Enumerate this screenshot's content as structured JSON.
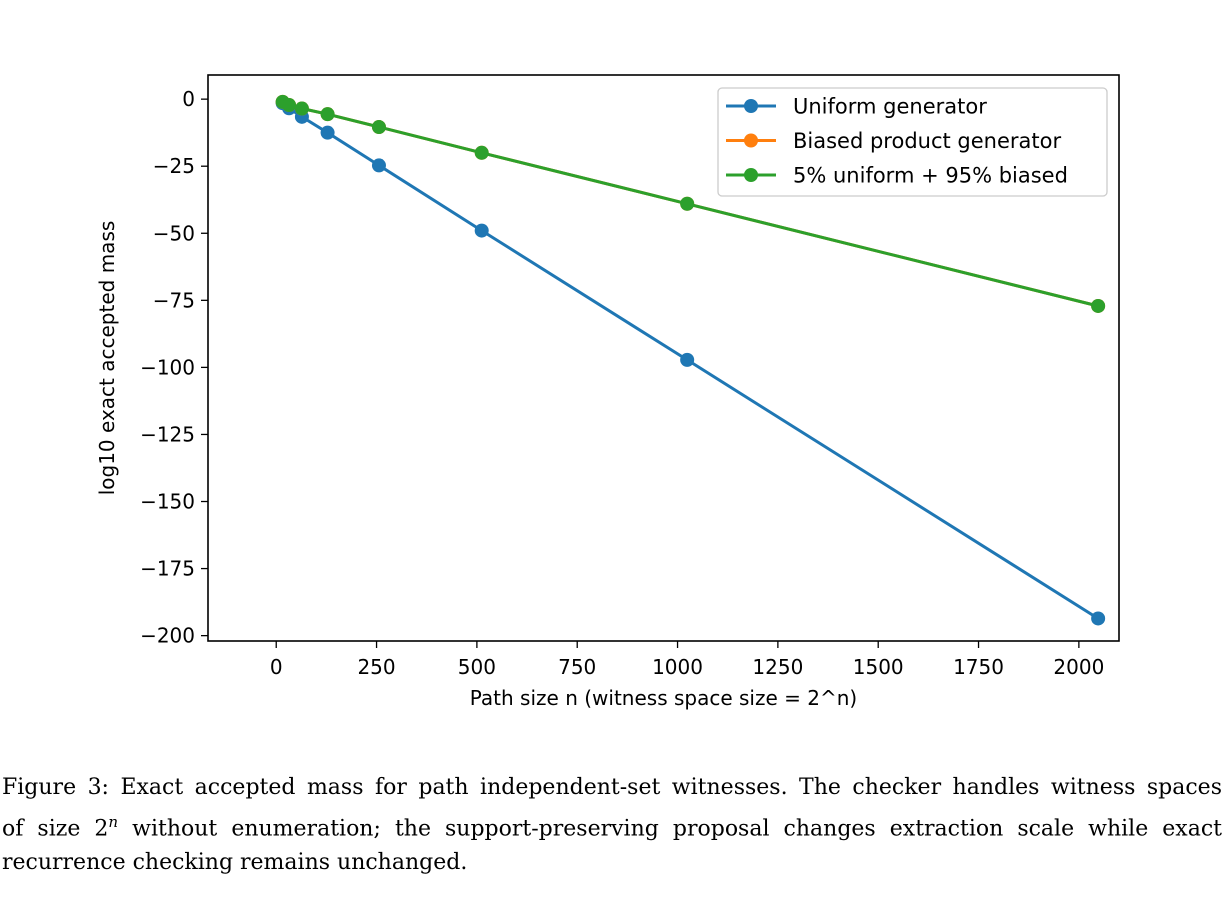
{
  "chart_data": {
    "type": "line",
    "title": "",
    "xlabel": "Path size n (witness space size = 2^n)",
    "ylabel": "log10 exact accepted mass",
    "xlim": [
      -170,
      2100
    ],
    "ylim": [
      -202,
      9
    ],
    "xticks": [
      0,
      250,
      500,
      750,
      1000,
      1250,
      1500,
      1750,
      2000
    ],
    "xtick_labels": [
      "0",
      "250",
      "500",
      "750",
      "1000",
      "1250",
      "1500",
      "1750",
      "2000"
    ],
    "yticks": [
      0,
      -25,
      -50,
      -75,
      -100,
      -125,
      -150,
      -175,
      -200
    ],
    "ytick_labels": [
      "0",
      "−25",
      "−50",
      "−75",
      "−100",
      "−125",
      "−150",
      "−175",
      "−200"
    ],
    "grid": false,
    "legend_position": "top-right",
    "x": [
      16,
      32,
      64,
      128,
      256,
      512,
      1024,
      2048
    ],
    "series": [
      {
        "name": "Uniform generator",
        "color": "#1f77b4",
        "marker": "circle",
        "values": [
          -1.5,
          -3.4,
          -6.6,
          -12.5,
          -24.7,
          -49.0,
          -97.2,
          -193.6
        ]
      },
      {
        "name": "Biased product generator",
        "color": "#ff7f0e",
        "marker": "circle",
        "values": [
          -1.0,
          -2.2,
          -3.5,
          -5.6,
          -10.4,
          -20.0,
          -39.0,
          -77.1
        ]
      },
      {
        "name": "5% uniform + 95% biased",
        "color": "#2ca02c",
        "marker": "circle",
        "values": [
          -1.0,
          -2.2,
          -3.5,
          -5.6,
          -10.4,
          -20.0,
          -39.0,
          -77.1
        ]
      }
    ]
  },
  "caption": {
    "line1": "Figure 3: Exact accepted mass for path independent-set witnesses. The checker handles witness spaces",
    "line2_pre": "of size 2",
    "line2_sup": "n",
    "line2_post": " without enumeration; the support-preserving proposal changes extraction scale while exact",
    "line3": "recurrence checking remains unchanged."
  }
}
